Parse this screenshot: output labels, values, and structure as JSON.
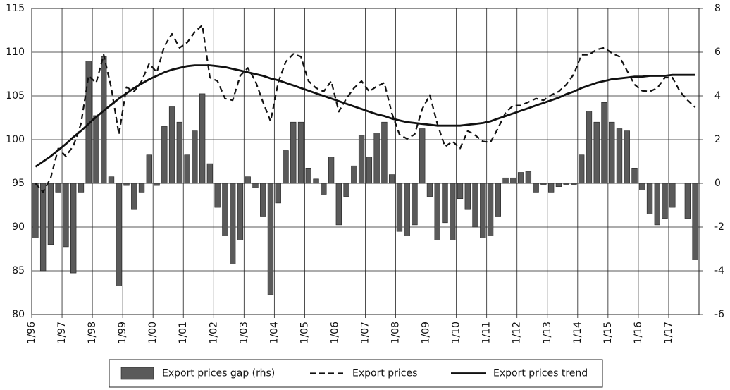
{
  "chart_data": {
    "type": "bar",
    "categories": [
      "1/96",
      null,
      null,
      null,
      "1/97",
      null,
      null,
      null,
      "1/98",
      null,
      null,
      null,
      "1/99",
      null,
      null,
      null,
      "1/00",
      null,
      null,
      null,
      "1/01",
      null,
      null,
      null,
      "1/02",
      null,
      null,
      null,
      "1/03",
      null,
      null,
      null,
      "1/04",
      null,
      null,
      null,
      "1/05",
      null,
      null,
      null,
      "1/06",
      null,
      null,
      null,
      "1/07",
      null,
      null,
      null,
      "1/08",
      null,
      null,
      null,
      "1/09",
      null,
      null,
      null,
      "1/10",
      null,
      null,
      null,
      "1/11",
      null,
      null,
      null,
      "1/12",
      null,
      null,
      null,
      "1/13",
      null,
      null,
      null,
      "1/14",
      null,
      null,
      null,
      "1/15",
      null,
      null,
      null,
      "1/16",
      null,
      null,
      null,
      "1/17",
      null,
      null,
      null
    ],
    "series": [
      {
        "name": "Export prices gap (rhs)",
        "type": "bar",
        "axis": "y2",
        "color": "#5a5a5a",
        "values": [
          -2.5,
          -4.0,
          -2.8,
          -0.4,
          -2.9,
          -4.1,
          -0.4,
          5.6,
          3.1,
          5.8,
          0.3,
          -4.7,
          -0.1,
          -1.2,
          -0.4,
          1.3,
          -0.1,
          2.6,
          3.5,
          2.8,
          1.3,
          2.4,
          4.1,
          0.9,
          -1.1,
          -2.4,
          -3.7,
          -2.6,
          0.3,
          -0.2,
          -1.5,
          -5.1,
          -0.9,
          1.5,
          2.8,
          2.8,
          0.7,
          0.2,
          -0.5,
          1.2,
          -1.9,
          -0.6,
          0.8,
          2.2,
          1.2,
          2.3,
          2.8,
          0.4,
          -2.2,
          -2.4,
          -1.9,
          2.5,
          -0.6,
          -2.6,
          -1.8,
          -2.6,
          -0.7,
          -1.2,
          -2.0,
          -2.5,
          -2.4,
          -1.5,
          0.25,
          0.25,
          0.5,
          0.55,
          -0.4,
          -0.05,
          -0.4,
          -0.15,
          -0.05,
          -0.05,
          1.3,
          3.3,
          2.8,
          3.7,
          2.8,
          2.5,
          2.4,
          0.7,
          -0.3,
          -1.4,
          -1.9,
          -1.6,
          -1.1,
          0.0,
          -1.6,
          -3.5
        ]
      },
      {
        "name": "Export prices",
        "type": "line",
        "dashed": true,
        "color": "#111111",
        "values": [
          95.0,
          94.0,
          95.6,
          99.0,
          98.1,
          99.3,
          101.8,
          107.3,
          106.5,
          109.7,
          105.9,
          100.6,
          106.0,
          105.5,
          106.7,
          108.7,
          107.7,
          110.7,
          112.1,
          110.5,
          111.1,
          112.3,
          113.1,
          107.1,
          106.7,
          104.7,
          104.5,
          107.3,
          108.2,
          106.7,
          104.3,
          102.1,
          106.5,
          108.9,
          109.8,
          109.5,
          106.7,
          105.9,
          105.5,
          106.7,
          103.2,
          104.7,
          105.9,
          106.7,
          105.5,
          106.1,
          106.5,
          103.0,
          100.6,
          100.1,
          100.6,
          103.5,
          105.1,
          101.8,
          99.2,
          99.8,
          99.0,
          101.0,
          100.5,
          99.8,
          99.7,
          101.3,
          103.1,
          103.9,
          103.9,
          104.3,
          104.7,
          104.5,
          105.1,
          105.5,
          106.3,
          107.5,
          109.7,
          109.7,
          110.3,
          110.5,
          109.9,
          109.5,
          107.9,
          106.3,
          105.6,
          105.5,
          105.9,
          107.1,
          107.1,
          105.5,
          104.5,
          103.7
        ]
      },
      {
        "name": "Export prices trend",
        "type": "line",
        "dashed": false,
        "color": "#111111",
        "values": [
          96.9,
          97.5,
          98.1,
          98.8,
          99.5,
          100.3,
          101.0,
          101.8,
          102.6,
          103.3,
          104.0,
          104.7,
          105.3,
          105.9,
          106.4,
          106.9,
          107.3,
          107.7,
          108.0,
          108.2,
          108.4,
          108.5,
          108.5,
          108.5,
          108.4,
          108.3,
          108.1,
          107.9,
          107.7,
          107.5,
          107.3,
          107.0,
          106.8,
          106.5,
          106.2,
          105.9,
          105.6,
          105.3,
          105.0,
          104.7,
          104.4,
          104.1,
          103.8,
          103.5,
          103.2,
          102.9,
          102.7,
          102.4,
          102.2,
          102.0,
          101.9,
          101.8,
          101.7,
          101.6,
          101.6,
          101.6,
          101.6,
          101.7,
          101.8,
          101.9,
          102.1,
          102.4,
          102.7,
          103.0,
          103.3,
          103.6,
          103.9,
          104.2,
          104.5,
          104.8,
          105.2,
          105.5,
          105.9,
          106.2,
          106.5,
          106.7,
          106.9,
          107.0,
          107.1,
          107.2,
          107.2,
          107.3,
          107.3,
          107.3,
          107.4,
          107.4,
          107.4,
          107.4
        ]
      }
    ],
    "ylim": [
      80,
      115
    ],
    "yticks": [
      80,
      85,
      90,
      95,
      100,
      105,
      110,
      115
    ],
    "y2lim": [
      -6,
      8
    ],
    "y2ticks": [
      -6,
      -4,
      -2,
      0,
      2,
      4,
      6,
      8
    ],
    "grid": true,
    "legend": "bottom"
  }
}
